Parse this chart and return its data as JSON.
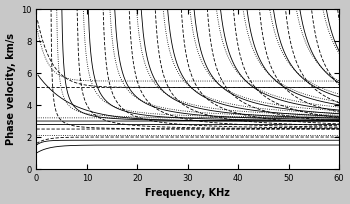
{
  "xlabel": "Frequency, KHz",
  "ylabel": "Phase velocity, km/s",
  "xlim": [
    0,
    60
  ],
  "ylim": [
    0,
    10
  ],
  "xticks": [
    0,
    10,
    20,
    30,
    40,
    50,
    60
  ],
  "yticks": [
    0,
    2,
    4,
    6,
    8,
    10
  ],
  "fig_bg": "#c8c8c8",
  "plot_bg": "#ffffff",
  "vs": 3.0,
  "vl": 5.94,
  "vr": 2.78,
  "lw": 0.6
}
